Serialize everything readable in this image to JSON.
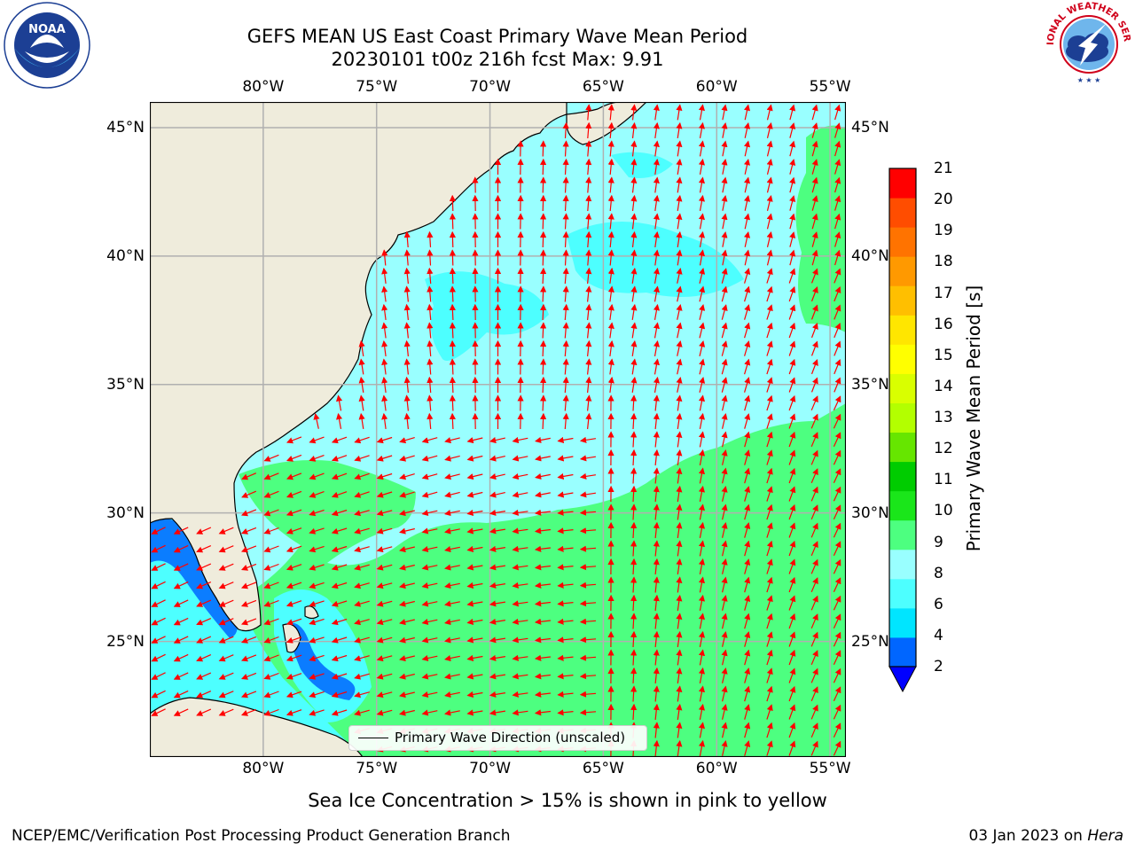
{
  "title": {
    "line1": "GEFS MEAN US East Coast Primary Wave Mean Period",
    "line2": "20230101 t00z 216h fcst   Max: 9.91"
  },
  "logos": {
    "left": {
      "name": "noaa-logo",
      "text": "NOAA",
      "ring_text": "NATIONAL OCEANIC AND ATMOSPHERIC ADMINISTRATION · U.S. DEPARTMENT OF COMMERCE"
    },
    "right": {
      "name": "nws-logo",
      "ring_text": "NATIONAL WEATHER SERVICE"
    }
  },
  "map": {
    "lon_range": [
      -85,
      -54.3
    ],
    "lat_range": [
      20.5,
      46
    ],
    "lon_ticks": [
      "80°W",
      "75°W",
      "70°W",
      "65°W",
      "60°W",
      "55°W"
    ],
    "lat_ticks": [
      "45°N",
      "40°N",
      "35°N",
      "30°N",
      "25°N"
    ],
    "gridlines": true,
    "land_color": "#efecdc",
    "arrow_color": "#ff0000"
  },
  "legend": {
    "label": "Primary Wave Direction (unscaled)",
    "placement": "bottom-center"
  },
  "colorbar": {
    "label": "Primary Wave Mean Period [s]",
    "ticks": [
      "21",
      "20",
      "19",
      "18",
      "17",
      "16",
      "15",
      "14",
      "13",
      "12",
      "11",
      "10",
      "9",
      "8",
      "6",
      "4",
      "2"
    ],
    "colors_bottom_to_top": [
      "#0066ff",
      "#00e5ff",
      "#4dffff",
      "#99ffff",
      "#4dff80",
      "#1ae61a",
      "#00cc00",
      "#66e600",
      "#b3ff00",
      "#d9ff00",
      "#ffff00",
      "#ffe600",
      "#ffbf00",
      "#ff9900",
      "#ff7300",
      "#ff4d00",
      "#ff0000"
    ],
    "under_color": "#0000ff"
  },
  "footnote": "Sea Ice Concentration > 15% is shown in pink to yellow",
  "credit": "NCEP/EMC/Verification Post Processing Product Generation Branch",
  "date": {
    "text": "03 Jan 2023 on",
    "machine": "Hera"
  }
}
